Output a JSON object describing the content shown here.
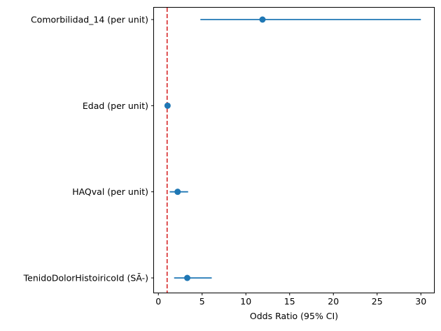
{
  "chart_data": {
    "type": "forest",
    "title": "",
    "xlabel": "Odds Ratio (95% CI)",
    "ylabel": "",
    "xlim": [
      -0.5,
      31.5
    ],
    "x_ticks": [
      0,
      5,
      10,
      15,
      20,
      25,
      30
    ],
    "grid": false,
    "series_color": "#1f77b4",
    "reference_line": {
      "x": 1,
      "color": "#d62728",
      "style": "dashed"
    },
    "rows": [
      {
        "label": "Comorbilidad_14 (per unit)",
        "or": 11.9,
        "ci_low": 4.8,
        "ci_high": 30.0
      },
      {
        "label": "Edad (per unit)",
        "or": 1.05,
        "ci_low": 1.0,
        "ci_high": 1.1
      },
      {
        "label": "HAQval (per unit)",
        "or": 2.2,
        "ci_low": 1.3,
        "ci_high": 3.4
      },
      {
        "label": "TenidoDolorHistoiricoId (SĀ-)",
        "or": 3.3,
        "ci_low": 1.8,
        "ci_high": 6.1
      }
    ]
  }
}
